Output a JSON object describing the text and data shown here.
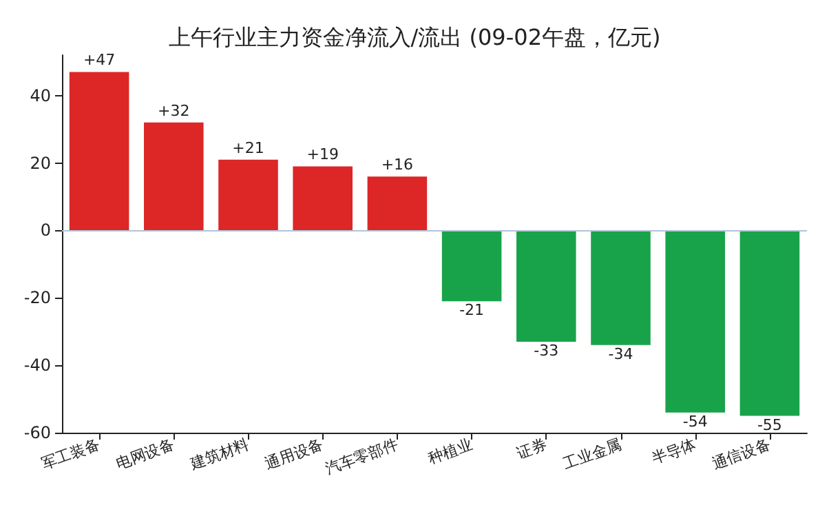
{
  "chart_data": {
    "type": "bar",
    "title": "上午行业主力资金净流入/流出 (09-02午盘，亿元)",
    "categories": [
      "军工装备",
      "电网设备",
      "建筑材料",
      "通用设备",
      "汽车零部件",
      "种植业",
      "证券",
      "工业金属",
      "半导体",
      "通信设备"
    ],
    "values": [
      47,
      32,
      21,
      19,
      16,
      -21,
      -33,
      -34,
      -54,
      -55
    ],
    "value_labels": [
      "+47",
      "+32",
      "+21",
      "+19",
      "+16",
      "-21",
      "-33",
      "-34",
      "-54",
      "-55"
    ],
    "colors": [
      "#dd2626",
      "#dd2626",
      "#dd2626",
      "#dd2626",
      "#dd2626",
      "#18a34a",
      "#18a34a",
      "#18a34a",
      "#18a34a",
      "#18a34a"
    ],
    "ylim": [
      -60,
      52
    ],
    "yticks": [
      -60,
      -40,
      -20,
      0,
      20,
      40
    ],
    "ref_lines": [
      {
        "axis": "y",
        "value": 0,
        "color": "#b0c4d8"
      }
    ],
    "grid": false
  }
}
